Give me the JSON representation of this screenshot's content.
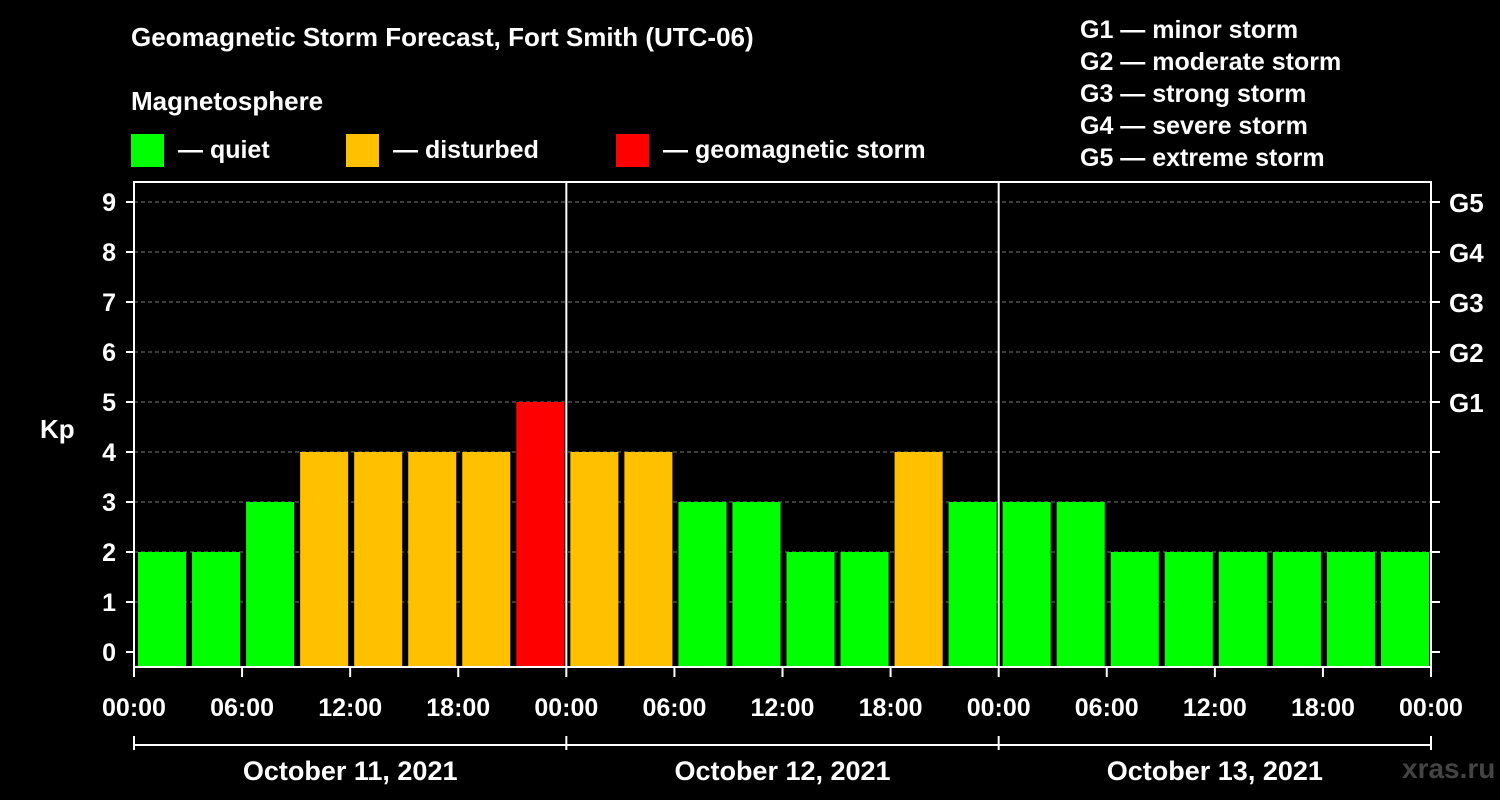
{
  "chart_data": {
    "type": "bar",
    "title": "Geomagnetic Storm Forecast, Fort Smith (UTC-06)",
    "subtitle": "Magnetosphere",
    "ylabel": "Kp",
    "ylim": [
      0,
      9
    ],
    "yticks": [
      "0",
      "1",
      "2",
      "3",
      "4",
      "5",
      "6",
      "7",
      "8",
      "9"
    ],
    "right_ticks": [
      {
        "kp": 5,
        "label": "G1"
      },
      {
        "kp": 6,
        "label": "G2"
      },
      {
        "kp": 7,
        "label": "G3"
      },
      {
        "kp": 8,
        "label": "G4"
      },
      {
        "kp": 9,
        "label": "G5"
      }
    ],
    "xticks": [
      "00:00",
      "06:00",
      "12:00",
      "18:00",
      "00:00",
      "06:00",
      "12:00",
      "18:00",
      "00:00",
      "06:00",
      "12:00",
      "18:00",
      "00:00"
    ],
    "days": [
      "October 11, 2021",
      "October 12, 2021",
      "October 13, 2021"
    ],
    "values": [
      2,
      2,
      3,
      4,
      4,
      4,
      4,
      5,
      4,
      4,
      3,
      3,
      2,
      2,
      4,
      3,
      3,
      3,
      2,
      2,
      2,
      2,
      2,
      2
    ],
    "status": [
      "quiet",
      "quiet",
      "quiet",
      "disturbed",
      "disturbed",
      "disturbed",
      "disturbed",
      "storm",
      "disturbed",
      "disturbed",
      "quiet",
      "quiet",
      "quiet",
      "quiet",
      "disturbed",
      "quiet",
      "quiet",
      "quiet",
      "quiet",
      "quiet",
      "quiet",
      "quiet",
      "quiet",
      "quiet"
    ],
    "grid": true
  },
  "legend": {
    "items": [
      {
        "key": "quiet",
        "label": "— quiet",
        "color": "#00ff00"
      },
      {
        "key": "disturbed",
        "label": "— disturbed",
        "color": "#ffc000"
      },
      {
        "key": "storm",
        "label": "— geomagnetic storm",
        "color": "#ff0000"
      }
    ]
  },
  "storm_scale": [
    "G1 — minor storm",
    "G2 — moderate storm",
    "G3 — strong storm",
    "G4 — severe storm",
    "G5 — extreme storm"
  ],
  "watermark": "xras.ru"
}
